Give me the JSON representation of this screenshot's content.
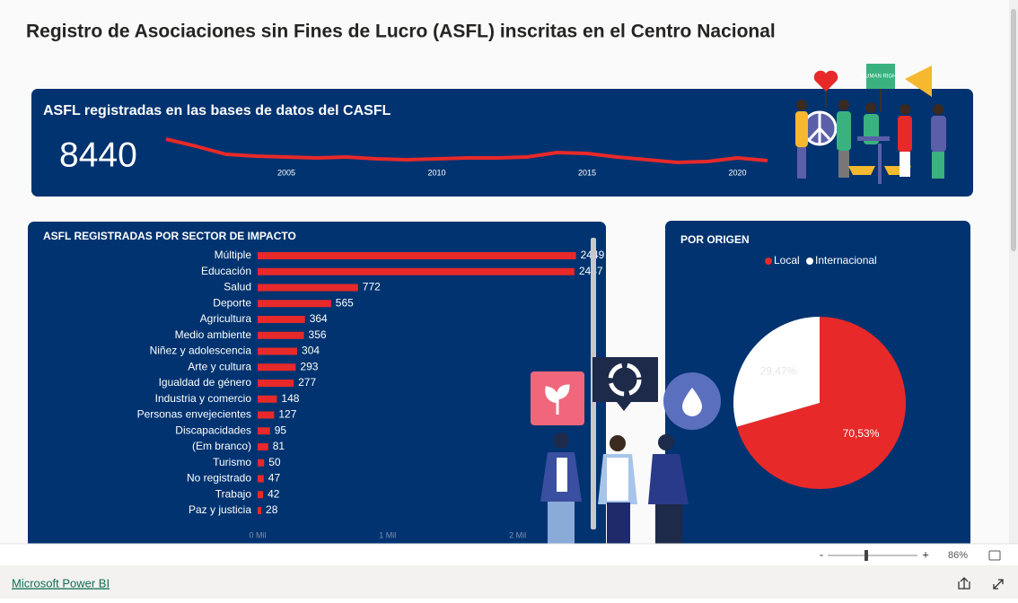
{
  "title": "Registro de Asociaciones sin Fines de Lucro (ASFL) inscritas en el Centro Nacional",
  "kpi": {
    "title": "ASFL registradas en las bases de datos del CASFL",
    "value": 8440
  },
  "illustration": {
    "sign": "HUMAN RIGHT"
  },
  "chart_data": [
    {
      "type": "line",
      "color": "#e8292a",
      "x": [
        2001,
        2002,
        2003,
        2004,
        2005,
        2006,
        2007,
        2008,
        2009,
        2010,
        2011,
        2012,
        2013,
        2014,
        2015,
        2016,
        2017,
        2018,
        2019,
        2020,
        2021
      ],
      "values": [
        600,
        440,
        260,
        220,
        200,
        180,
        200,
        160,
        140,
        160,
        180,
        180,
        200,
        300,
        280,
        200,
        140,
        80,
        100,
        180,
        120
      ],
      "xlim": [
        2001,
        2021
      ],
      "ylim": [
        0,
        700
      ],
      "xticks": [
        2005,
        2010,
        2015,
        2020
      ]
    },
    {
      "type": "bar",
      "orientation": "horizontal",
      "title": "ASFL REGISTRADAS POR SECTOR DE IMPACTO",
      "color": "#e8292a",
      "categories": [
        "Múltiple",
        "Educación",
        "Salud",
        "Deporte",
        "Agricultura",
        "Medio ambiente",
        "Niñez y adolescencia",
        "Arte y cultura",
        "Igualdad de género",
        "Industria y comercio",
        "Personas envejecientes",
        "Discapacidades",
        "(Em branco)",
        "Turismo",
        "No registrado",
        "Trabajo",
        "Paz y justicia"
      ],
      "values": [
        2449,
        2437,
        772,
        565,
        364,
        356,
        304,
        293,
        277,
        148,
        127,
        95,
        81,
        50,
        47,
        42,
        28
      ],
      "xlim": [
        0,
        2500
      ],
      "xticks": [
        {
          "value": 0,
          "label": "0 Mil"
        },
        {
          "value": 1000,
          "label": "1 Mil"
        },
        {
          "value": 2000,
          "label": "2 Mil"
        }
      ]
    },
    {
      "type": "pie",
      "title": "POR ORIGEN",
      "legend": "top",
      "categories": [
        "Local",
        "Internacional"
      ],
      "colors": [
        "#e8292a",
        "#ffffff"
      ],
      "values": [
        70.53,
        29.47
      ],
      "value_labels": [
        "70,53%",
        "29,47%"
      ]
    }
  ],
  "zoom": {
    "minus": "-",
    "plus": "+",
    "level": "86%"
  },
  "footer": {
    "link": "Microsoft Power BI"
  }
}
